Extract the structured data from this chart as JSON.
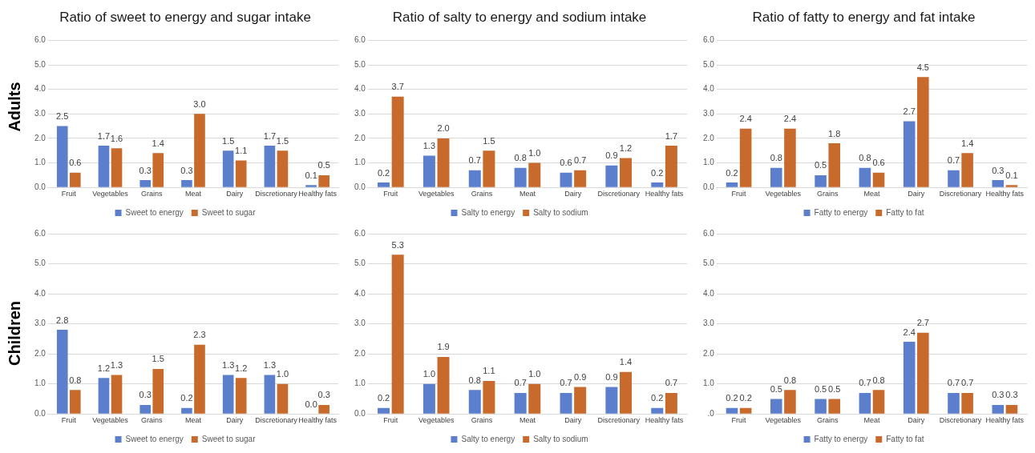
{
  "chart_data": [
    {
      "type": "bar",
      "title": "Ratio of sweet to energy and sugar intake",
      "annotations": [
        "Adults"
      ],
      "categories": [
        "Fruit",
        "Vegetables",
        "Grains",
        "Meat",
        "Dairy",
        "Discretionary",
        "Healthy fats"
      ],
      "series": [
        {
          "name": "Sweet to energy",
          "color": "#5b7fcc",
          "values": [
            2.5,
            1.7,
            0.3,
            0.3,
            1.5,
            1.7,
            0.1
          ],
          "value_labels": [
            "2.5",
            "1.7",
            "0.3",
            "0.3",
            "1.5",
            "1.7",
            "0.1"
          ]
        },
        {
          "name": "Sweet to sugar",
          "color": "#c76a2b",
          "values": [
            0.6,
            1.6,
            1.4,
            3.0,
            1.1,
            1.5,
            0.5
          ],
          "value_labels": [
            "0.6",
            "1.6",
            "1.4",
            "3.0",
            "1.1",
            "1.5",
            "0.5"
          ]
        }
      ],
      "ylim": [
        0,
        6
      ],
      "yticks": [
        {
          "value": 0,
          "label": "0.0"
        },
        {
          "value": 1,
          "label": "1.0"
        },
        {
          "value": 2,
          "label": "2.0"
        },
        {
          "value": 3,
          "label": "3.0"
        },
        {
          "value": 4,
          "label": "4.0"
        },
        {
          "value": 5,
          "label": "5.0"
        },
        {
          "value": 6,
          "label": "6.0"
        }
      ],
      "grid": "y",
      "legend": "bottom"
    },
    {
      "type": "bar",
      "title": "Ratio of salty to energy and sodium intake",
      "categories": [
        "Fruit",
        "Vegetables",
        "Grains",
        "Meat",
        "Dairy",
        "Discretionary",
        "Healthy fats"
      ],
      "series": [
        {
          "name": "Salty to energy",
          "color": "#5b7fcc",
          "values": [
            0.2,
            1.3,
            0.7,
            0.8,
            0.6,
            0.9,
            0.2
          ],
          "value_labels": [
            "0.2",
            "1.3",
            "0.7",
            "0.8",
            "0.6",
            "0.9",
            "0.2"
          ]
        },
        {
          "name": "Salty to sodium",
          "color": "#c76a2b",
          "values": [
            3.7,
            2.0,
            1.5,
            1.0,
            0.7,
            1.2,
            1.7
          ],
          "value_labels": [
            "3.7",
            "2.0",
            "1.5",
            "1.0",
            "0.7",
            "1.2",
            "1.7"
          ]
        }
      ],
      "ylim": [
        0,
        6
      ],
      "yticks": [
        {
          "value": 0,
          "label": "0.0"
        },
        {
          "value": 1,
          "label": "1.0"
        },
        {
          "value": 2,
          "label": "2.0"
        },
        {
          "value": 3,
          "label": "3.0"
        },
        {
          "value": 4,
          "label": "4.0"
        },
        {
          "value": 5,
          "label": "5.0"
        },
        {
          "value": 6,
          "label": "6.0"
        }
      ],
      "grid": "y",
      "legend": "bottom"
    },
    {
      "type": "bar",
      "title": "Ratio of fatty to energy and fat intake",
      "categories": [
        "Fruit",
        "Vegetables",
        "Grains",
        "Meat",
        "Dairy",
        "Discretionary",
        "Healthy fats"
      ],
      "series": [
        {
          "name": "Fatty to energy",
          "color": "#5b7fcc",
          "values": [
            0.2,
            0.8,
            0.5,
            0.8,
            2.7,
            0.7,
            0.3
          ],
          "value_labels": [
            "0.2",
            "0.8",
            "0.5",
            "0.8",
            "2.7",
            "0.7",
            "0.3"
          ]
        },
        {
          "name": "Fatty to fat",
          "color": "#c76a2b",
          "values": [
            2.4,
            2.4,
            1.8,
            0.6,
            4.5,
            1.4,
            0.1
          ],
          "value_labels": [
            "2.4",
            "2.4",
            "1.8",
            "0.6",
            "4.5",
            "1.4",
            "0.1"
          ]
        }
      ],
      "ylim": [
        0,
        6
      ],
      "yticks": [
        {
          "value": 0,
          "label": "0.0"
        },
        {
          "value": 1,
          "label": "1.0"
        },
        {
          "value": 2,
          "label": "2.0"
        },
        {
          "value": 3,
          "label": "3.0"
        },
        {
          "value": 4,
          "label": "4.0"
        },
        {
          "value": 5,
          "label": "5.0"
        },
        {
          "value": 6,
          "label": "6.0"
        }
      ],
      "grid": "y",
      "legend": "bottom"
    },
    {
      "type": "bar",
      "annotations": [
        "Children"
      ],
      "categories": [
        "Fruit",
        "Vegetables",
        "Grains",
        "Meat",
        "Dairy",
        "Discretionary",
        "Healthy fats"
      ],
      "series": [
        {
          "name": "Sweet to energy",
          "color": "#5b7fcc",
          "values": [
            2.8,
            1.2,
            0.3,
            0.2,
            1.3,
            1.3,
            0.0
          ],
          "value_labels": [
            "2.8",
            "1.2",
            "0.3",
            "0.2",
            "1.3",
            "1.3",
            "0.0"
          ]
        },
        {
          "name": "Sweet to sugar",
          "color": "#c76a2b",
          "values": [
            0.8,
            1.3,
            1.5,
            2.3,
            1.2,
            1.0,
            0.3
          ],
          "value_labels": [
            "0.8",
            "1.3",
            "1.5",
            "2.3",
            "1.2",
            "1.0",
            "0.3"
          ]
        }
      ],
      "ylim": [
        0,
        6
      ],
      "yticks": [
        {
          "value": 0,
          "label": "0.0"
        },
        {
          "value": 1,
          "label": "1.0"
        },
        {
          "value": 2,
          "label": "2.0"
        },
        {
          "value": 3,
          "label": "3.0"
        },
        {
          "value": 4,
          "label": "4.0"
        },
        {
          "value": 5,
          "label": "5.0"
        },
        {
          "value": 6,
          "label": "6.0"
        }
      ],
      "grid": "y",
      "legend": "bottom"
    },
    {
      "type": "bar",
      "categories": [
        "Fruit",
        "Vegetables",
        "Grains",
        "Meat",
        "Dairy",
        "Discretionary",
        "Healthy fats"
      ],
      "series": [
        {
          "name": "Salty to energy",
          "color": "#5b7fcc",
          "values": [
            0.2,
            1.0,
            0.8,
            0.7,
            0.7,
            0.9,
            0.2
          ],
          "value_labels": [
            "0.2",
            "1.0",
            "0.8",
            "0.7",
            "0.7",
            "0.9",
            "0.2"
          ]
        },
        {
          "name": "Salty to sodium",
          "color": "#c76a2b",
          "values": [
            5.3,
            1.9,
            1.1,
            1.0,
            0.9,
            1.4,
            0.7
          ],
          "value_labels": [
            "5.3",
            "1.9",
            "1.1",
            "1.0",
            "0.9",
            "1.4",
            "0.7"
          ]
        }
      ],
      "ylim": [
        0,
        6
      ],
      "yticks": [
        {
          "value": 0,
          "label": "0.0"
        },
        {
          "value": 1,
          "label": "1.0"
        },
        {
          "value": 2,
          "label": "2.0"
        },
        {
          "value": 3,
          "label": "3.0"
        },
        {
          "value": 4,
          "label": "4.0"
        },
        {
          "value": 5,
          "label": "5.0"
        },
        {
          "value": 6,
          "label": "6.0"
        }
      ],
      "grid": "y",
      "legend": "bottom"
    },
    {
      "type": "bar",
      "categories": [
        "Fruit",
        "Vegetables",
        "Grains",
        "Meat",
        "Dairy",
        "Discretionary",
        "Healthy fats"
      ],
      "series": [
        {
          "name": "Fatty to energy",
          "color": "#5b7fcc",
          "values": [
            0.2,
            0.5,
            0.5,
            0.7,
            2.4,
            0.7,
            0.3
          ],
          "value_labels": [
            "0.2",
            "0.5",
            "0.5",
            "0.7",
            "2.4",
            "0.7",
            "0.3"
          ]
        },
        {
          "name": "Fatty to fat",
          "color": "#c76a2b",
          "values": [
            0.2,
            0.8,
            0.5,
            0.8,
            2.7,
            0.7,
            0.3
          ],
          "value_labels": [
            "0.2",
            "0.8",
            "0.5",
            "0.8",
            "2.7",
            "0.7",
            "0.3"
          ]
        }
      ],
      "ylim": [
        0,
        6
      ],
      "yticks": [
        {
          "value": 0,
          "label": ".0"
        },
        {
          "value": 1,
          "label": "1.0"
        },
        {
          "value": 2,
          "label": "2.0"
        },
        {
          "value": 3,
          "label": "3.0"
        },
        {
          "value": 4,
          "label": "4.0"
        },
        {
          "value": 5,
          "label": "5.0"
        },
        {
          "value": 6,
          "label": "6.0"
        }
      ],
      "grid": "y",
      "legend": "bottom"
    }
  ]
}
